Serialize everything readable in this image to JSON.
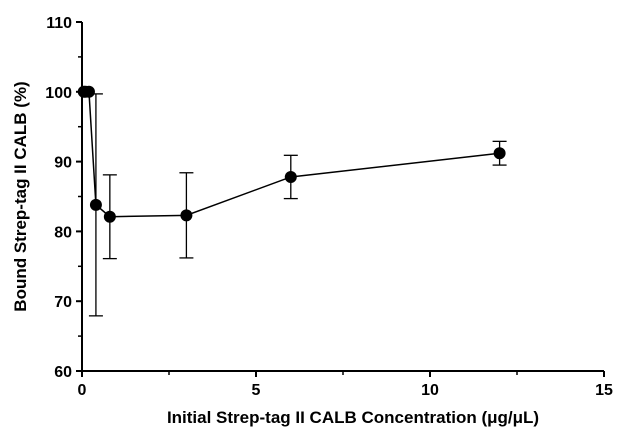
{
  "chart_data": {
    "type": "scatter",
    "title": "",
    "xlabel": "Initial Strep-tag II CALB Concentration (μg/μL)",
    "ylabel": "Bound Strep-tag II CALB (%)",
    "xlim": [
      0,
      15
    ],
    "ylim": [
      60,
      110
    ],
    "xticks": [
      "0",
      "5",
      "10",
      "15"
    ],
    "yticks": [
      "60",
      "70",
      "80",
      "90",
      "100",
      "110"
    ],
    "grid": false,
    "legend": "none",
    "connected": true,
    "error_bars": true,
    "series": [
      {
        "points": [
          {
            "x": 0.05,
            "y": 100.0,
            "err": 0
          },
          {
            "x": 0.1,
            "y": 100.0,
            "err": 0
          },
          {
            "x": 0.2,
            "y": 100.0,
            "err": 0
          },
          {
            "x": 0.4,
            "y": 83.8,
            "err": 15.9
          },
          {
            "x": 0.8,
            "y": 82.1,
            "err": 6.0
          },
          {
            "x": 3.0,
            "y": 82.3,
            "err": 6.1
          },
          {
            "x": 6.0,
            "y": 87.8,
            "err": 3.1
          },
          {
            "x": 12.0,
            "y": 91.2,
            "err": 1.7
          }
        ]
      }
    ],
    "colors": {
      "marker": "#000000",
      "line": "#000000",
      "axis": "#000000"
    }
  }
}
